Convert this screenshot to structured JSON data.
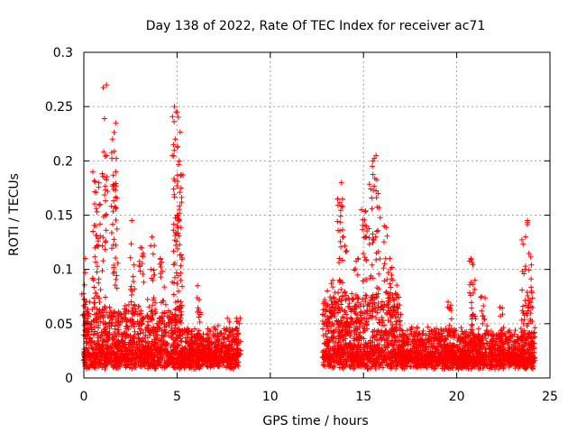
{
  "chart_data": {
    "type": "scatter",
    "title": "Day 138 of 2022, Rate Of TEC Index for receiver ac71",
    "xlabel": "GPS time / hours",
    "ylabel": "ROTI / TECUs",
    "xlim": [
      0,
      25
    ],
    "ylim": [
      0,
      0.3
    ],
    "xticks": [
      "0",
      "5",
      "10",
      "15",
      "20",
      "25"
    ],
    "yticks": [
      "0",
      "0.05",
      "0.1",
      "0.15",
      "0.2",
      "0.25",
      "0.3"
    ],
    "grid": true,
    "marker": "+",
    "marker_color": "#ff0000",
    "series": [
      {
        "segments": [
          {
            "x_start": 0.0,
            "x_end": 5.3,
            "baseline": 0.025,
            "spread": 0.05
          },
          {
            "x_start": 5.3,
            "x_end": 8.3,
            "baseline": 0.02,
            "spread": 0.03
          },
          {
            "x_start": 12.8,
            "x_end": 17.0,
            "baseline": 0.025,
            "spread": 0.06
          },
          {
            "x_start": 17.0,
            "x_end": 24.2,
            "baseline": 0.018,
            "spread": 0.03
          }
        ],
        "peaks": [
          [
            0.0,
            0.11
          ],
          [
            0.6,
            0.19
          ],
          [
            0.7,
            0.18
          ],
          [
            0.8,
            0.16
          ],
          [
            1.1,
            0.27
          ],
          [
            1.15,
            0.205
          ],
          [
            1.6,
            0.235
          ],
          [
            1.65,
            0.22
          ],
          [
            1.7,
            0.19
          ],
          [
            2.6,
            0.145
          ],
          [
            3.1,
            0.12
          ],
          [
            3.7,
            0.13
          ],
          [
            4.2,
            0.11
          ],
          [
            4.85,
            0.25
          ],
          [
            4.9,
            0.22
          ],
          [
            5.1,
            0.245
          ],
          [
            5.2,
            0.2
          ],
          [
            5.15,
            0.175
          ],
          [
            4.95,
            0.15
          ],
          [
            6.2,
            0.085
          ],
          [
            7.7,
            0.055
          ],
          [
            8.3,
            0.055
          ],
          [
            13.3,
            0.09
          ],
          [
            13.8,
            0.18
          ],
          [
            13.7,
            0.165
          ],
          [
            14.0,
            0.13
          ],
          [
            14.6,
            0.11
          ],
          [
            15.0,
            0.155
          ],
          [
            15.2,
            0.14
          ],
          [
            15.4,
            0.195
          ],
          [
            15.6,
            0.205
          ],
          [
            15.8,
            0.17
          ],
          [
            16.2,
            0.14
          ],
          [
            16.5,
            0.11
          ],
          [
            16.7,
            0.09
          ],
          [
            19.6,
            0.07
          ],
          [
            20.8,
            0.11
          ],
          [
            20.9,
            0.09
          ],
          [
            21.4,
            0.075
          ],
          [
            22.4,
            0.065
          ],
          [
            23.6,
            0.13
          ],
          [
            23.75,
            0.1
          ],
          [
            23.9,
            0.145
          ],
          [
            23.95,
            0.08
          ]
        ]
      }
    ]
  }
}
